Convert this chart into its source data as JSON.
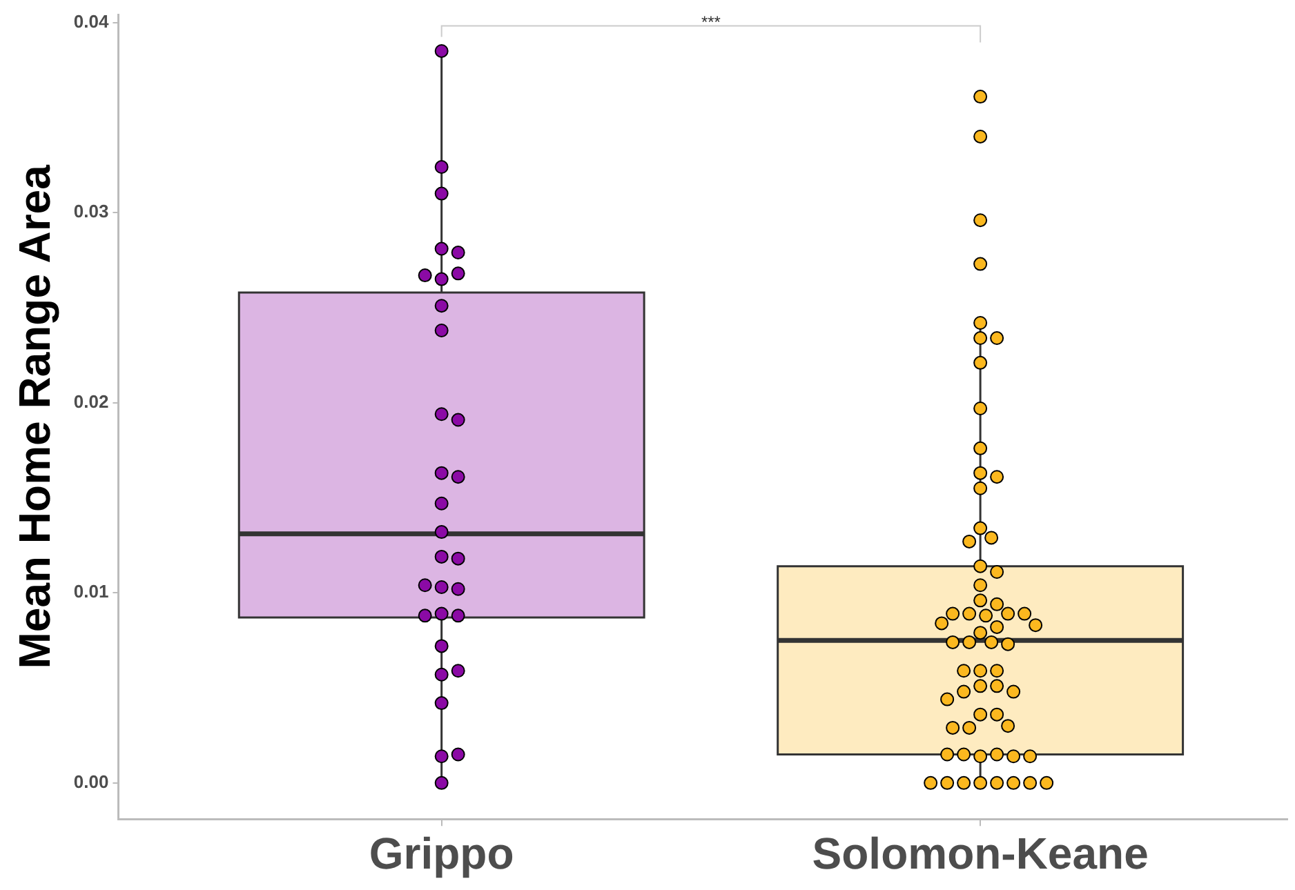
{
  "chart_data": {
    "type": "box",
    "ylabel": "Mean Home Range Area",
    "categories": [
      "Grippo",
      "Solomon-Keane"
    ],
    "colors": [
      "#dcb5e3",
      "#feebc0"
    ],
    "boxes": [
      {
        "low": 0,
        "q1": 0.0087,
        "median": 0.0131,
        "q3": 0.0258,
        "high": 0.0385
      },
      {
        "low": 0,
        "q1": 0.0015,
        "median": 0.0075,
        "q3": 0.0114,
        "high": 0.0242
      }
    ],
    "ylim": [
      -0.0019,
      0.0404
    ],
    "yticks": [
      {
        "value": 0,
        "label": "0.00"
      },
      {
        "value": 0.01,
        "label": "0.01"
      },
      {
        "value": 0.02,
        "label": "0.02"
      },
      {
        "value": 0.03,
        "label": "0.03"
      },
      {
        "value": 0.04,
        "label": "0.04"
      }
    ],
    "grid": false,
    "legend": false,
    "marker": "circle",
    "annotations": [
      "***"
    ],
    "series": [
      {
        "type": "scatter",
        "color": "#8b0aa5",
        "x": [
          "Grippo",
          "Grippo",
          "Grippo",
          "Grippo",
          "Grippo",
          "Grippo",
          "Grippo",
          "Grippo",
          "Grippo",
          "Grippo",
          "Grippo",
          "Grippo",
          "Grippo",
          "Grippo",
          "Grippo",
          "Grippo",
          "Grippo",
          "Grippo",
          "Grippo",
          "Grippo",
          "Grippo",
          "Grippo",
          "Grippo",
          "Grippo",
          "Grippo",
          "Grippo",
          "Grippo",
          "Grippo",
          "Grippo",
          "Grippo",
          "Grippo"
        ],
        "values": [
          0.0385,
          0.0324,
          0.031,
          0.0281,
          0.0279,
          0.0265,
          0.0268,
          0.0267,
          0.0251,
          0.0238,
          0.0194,
          0.0191,
          0.0163,
          0.0161,
          0.0147,
          0.0132,
          0.0119,
          0.0118,
          0.0103,
          0.0102,
          0.0104,
          0.0089,
          0.0088,
          0.0088,
          0.0072,
          0.0057,
          0.0059,
          0.0042,
          0.0014,
          0.0015,
          0
        ]
      },
      {
        "type": "scatter",
        "color": "#fbb81f",
        "x": [
          "Solomon-Keane",
          "Solomon-Keane",
          "Solomon-Keane",
          "Solomon-Keane",
          "Solomon-Keane",
          "Solomon-Keane",
          "Solomon-Keane",
          "Solomon-Keane",
          "Solomon-Keane",
          "Solomon-Keane",
          "Solomon-Keane",
          "Solomon-Keane",
          "Solomon-Keane",
          "Solomon-Keane",
          "Solomon-Keane",
          "Solomon-Keane",
          "Solomon-Keane",
          "Solomon-Keane",
          "Solomon-Keane",
          "Solomon-Keane",
          "Solomon-Keane",
          "Solomon-Keane",
          "Solomon-Keane",
          "Solomon-Keane",
          "Solomon-Keane",
          "Solomon-Keane",
          "Solomon-Keane",
          "Solomon-Keane",
          "Solomon-Keane",
          "Solomon-Keane",
          "Solomon-Keane",
          "Solomon-Keane",
          "Solomon-Keane",
          "Solomon-Keane",
          "Solomon-Keane",
          "Solomon-Keane",
          "Solomon-Keane",
          "Solomon-Keane",
          "Solomon-Keane",
          "Solomon-Keane",
          "Solomon-Keane",
          "Solomon-Keane",
          "Solomon-Keane",
          "Solomon-Keane",
          "Solomon-Keane",
          "Solomon-Keane",
          "Solomon-Keane",
          "Solomon-Keane",
          "Solomon-Keane",
          "Solomon-Keane",
          "Solomon-Keane",
          "Solomon-Keane",
          "Solomon-Keane",
          "Solomon-Keane",
          "Solomon-Keane",
          "Solomon-Keane",
          "Solomon-Keane",
          "Solomon-Keane",
          "Solomon-Keane",
          "Solomon-Keane",
          "Solomon-Keane"
        ],
        "values": [
          0.0361,
          0.034,
          0.0296,
          0.0273,
          0.0242,
          0.0234,
          0.0234,
          0.0221,
          0.0197,
          0.0176,
          0.0163,
          0.0161,
          0.0155,
          0.0134,
          0.0129,
          0.0127,
          0.0114,
          0.0111,
          0.0104,
          0.0096,
          0.0094,
          0.0089,
          0.0089,
          0.0088,
          0.0089,
          0.0089,
          0.0084,
          0.0082,
          0.0079,
          0.0083,
          0.0074,
          0.0074,
          0.0073,
          0.0074,
          0.0059,
          0.0059,
          0.0059,
          0.0051,
          0.0051,
          0.0048,
          0.0048,
          0.0044,
          0.0036,
          0.0036,
          0.0029,
          0.003,
          0.0029,
          0.0014,
          0.0015,
          0.0015,
          0.0014,
          0.0015,
          0.0014,
          0,
          0,
          0,
          0,
          0,
          0,
          0,
          0
        ]
      }
    ]
  }
}
